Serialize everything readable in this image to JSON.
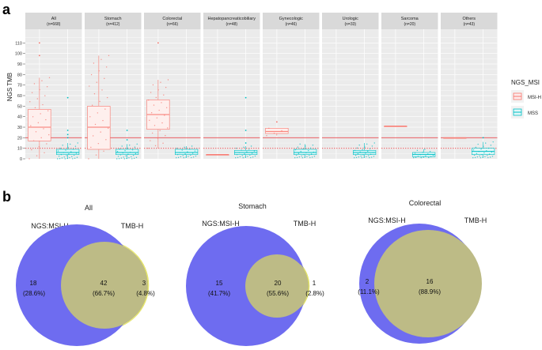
{
  "panel_labels": {
    "a": "a",
    "b": "b"
  },
  "colors": {
    "msi_h": "#F8766D",
    "mss": "#00BFC4",
    "panel_bg": "#EBEBEB",
    "strip_bg": "#D9D9D9",
    "grid": "#FFFFFF",
    "ref_line": "#E8494D",
    "venn_msi": "#6E6CF0",
    "venn_tmb": "#F4F47A",
    "venn_overlap": "#BDBB86"
  },
  "chart_data": [
    {
      "type": "box",
      "ylabel": "NGS TMB",
      "ylim": [
        0,
        120
      ],
      "yticks": [
        0,
        10,
        20,
        30,
        40,
        50,
        60,
        70,
        80,
        90,
        100,
        110
      ],
      "threshold_line": 20,
      "dotted_line": 10,
      "legend": {
        "title": "NGS_MSI",
        "position": "right",
        "entries": [
          "MSI-H",
          "MSS"
        ]
      },
      "facets": [
        {
          "name": "All",
          "n": "(n=668)",
          "series": [
            {
              "name": "MSI-H",
              "q1": 17,
              "median": 30,
              "q3": 47,
              "whisker_low": 0,
              "whisker_high": 77,
              "outliers": [
                98,
                110
              ]
            },
            {
              "name": "MSS",
              "q1": 4,
              "median": 6,
              "q3": 9,
              "whisker_low": 0,
              "whisker_high": 15,
              "outliers": [
                20,
                23,
                27,
                58
              ]
            }
          ]
        },
        {
          "name": "Stomach",
          "n": "(n=412)",
          "series": [
            {
              "name": "MSI-H",
              "q1": 9,
              "median": 30,
              "q3": 50,
              "whisker_low": 0,
              "whisker_high": 98,
              "outliers": []
            },
            {
              "name": "MSS",
              "q1": 4,
              "median": 6,
              "q3": 9,
              "whisker_low": 0,
              "whisker_high": 14,
              "outliers": [
                18,
                27
              ]
            }
          ]
        },
        {
          "name": "Colorectal",
          "n": "(n=66)",
          "series": [
            {
              "name": "MSI-H",
              "q1": 28,
              "median": 42,
              "q3": 56,
              "whisker_low": 10,
              "whisker_high": 75,
              "outliers": [
                110
              ]
            },
            {
              "name": "MSS",
              "q1": 4,
              "median": 6,
              "q3": 9,
              "whisker_low": 1,
              "whisker_high": 12,
              "outliers": []
            }
          ]
        },
        {
          "name": "Hepatopancreaticobiliary",
          "n": "(n=48)",
          "series": [
            {
              "name": "MSI-H",
              "q1": 4,
              "median": 4,
              "q3": 4,
              "whisker_low": 4,
              "whisker_high": 4,
              "outliers": []
            },
            {
              "name": "MSS",
              "q1": 4,
              "median": 6,
              "q3": 8,
              "whisker_low": 1,
              "whisker_high": 12,
              "outliers": [
                15,
                27,
                58
              ]
            }
          ]
        },
        {
          "name": "Gynecologic",
          "n": "(n=46)",
          "series": [
            {
              "name": "MSI-H",
              "q1": 24,
              "median": 26,
              "q3": 29,
              "whisker_low": 22,
              "whisker_high": 29,
              "outliers": [
                35
              ]
            },
            {
              "name": "MSS",
              "q1": 4,
              "median": 6,
              "q3": 9,
              "whisker_low": 1,
              "whisker_high": 14,
              "outliers": []
            }
          ]
        },
        {
          "name": "Urologic",
          "n": "(n=33)",
          "series": [
            {
              "name": "MSS",
              "q1": 4,
              "median": 6,
              "q3": 8,
              "whisker_low": 1,
              "whisker_high": 15,
              "outliers": []
            }
          ]
        },
        {
          "name": "Sarcoma",
          "n": "(n=20)",
          "series": [
            {
              "name": "MSI-H",
              "q1": 31,
              "median": 31,
              "q3": 31,
              "whisker_low": 31,
              "whisker_high": 31,
              "outliers": []
            },
            {
              "name": "MSS",
              "q1": 2,
              "median": 4,
              "q3": 6,
              "whisker_low": 1,
              "whisker_high": 9,
              "outliers": []
            }
          ]
        },
        {
          "name": "Others",
          "n": "(n=43)",
          "series": [
            {
              "name": "MSI-H",
              "q1": 20,
              "median": 20,
              "q3": 20,
              "whisker_low": 20,
              "whisker_high": 20,
              "outliers": []
            },
            {
              "name": "MSS",
              "q1": 4,
              "median": 7,
              "q3": 10,
              "whisker_low": 1,
              "whisker_high": 16,
              "outliers": [
                20
              ]
            }
          ]
        }
      ]
    },
    {
      "type": "venn",
      "diagrams": [
        {
          "title": "All",
          "set_a": "NGS:MSI-H",
          "set_b": "TMB-H",
          "only_a": "18",
          "only_a_pct": "(28.6%)",
          "both": "42",
          "both_pct": "(66.7%)",
          "only_b": "3",
          "only_b_pct": "(4.8%)"
        },
        {
          "title": "Stomach",
          "set_a": "NGS:MSI-H",
          "set_b": "TMB-H",
          "only_a": "15",
          "only_a_pct": "(41.7%)",
          "both": "20",
          "both_pct": "(55.6%)",
          "only_b": "1",
          "only_b_pct": "(2.8%)"
        },
        {
          "title": "Colorectal",
          "set_a": "NGS:MSI-H",
          "set_b": "TMB-H",
          "only_a": "2",
          "only_a_pct": "(11.1%)",
          "both": "16",
          "both_pct": "(88.9%)",
          "only_b": "",
          "only_b_pct": ""
        }
      ]
    }
  ]
}
